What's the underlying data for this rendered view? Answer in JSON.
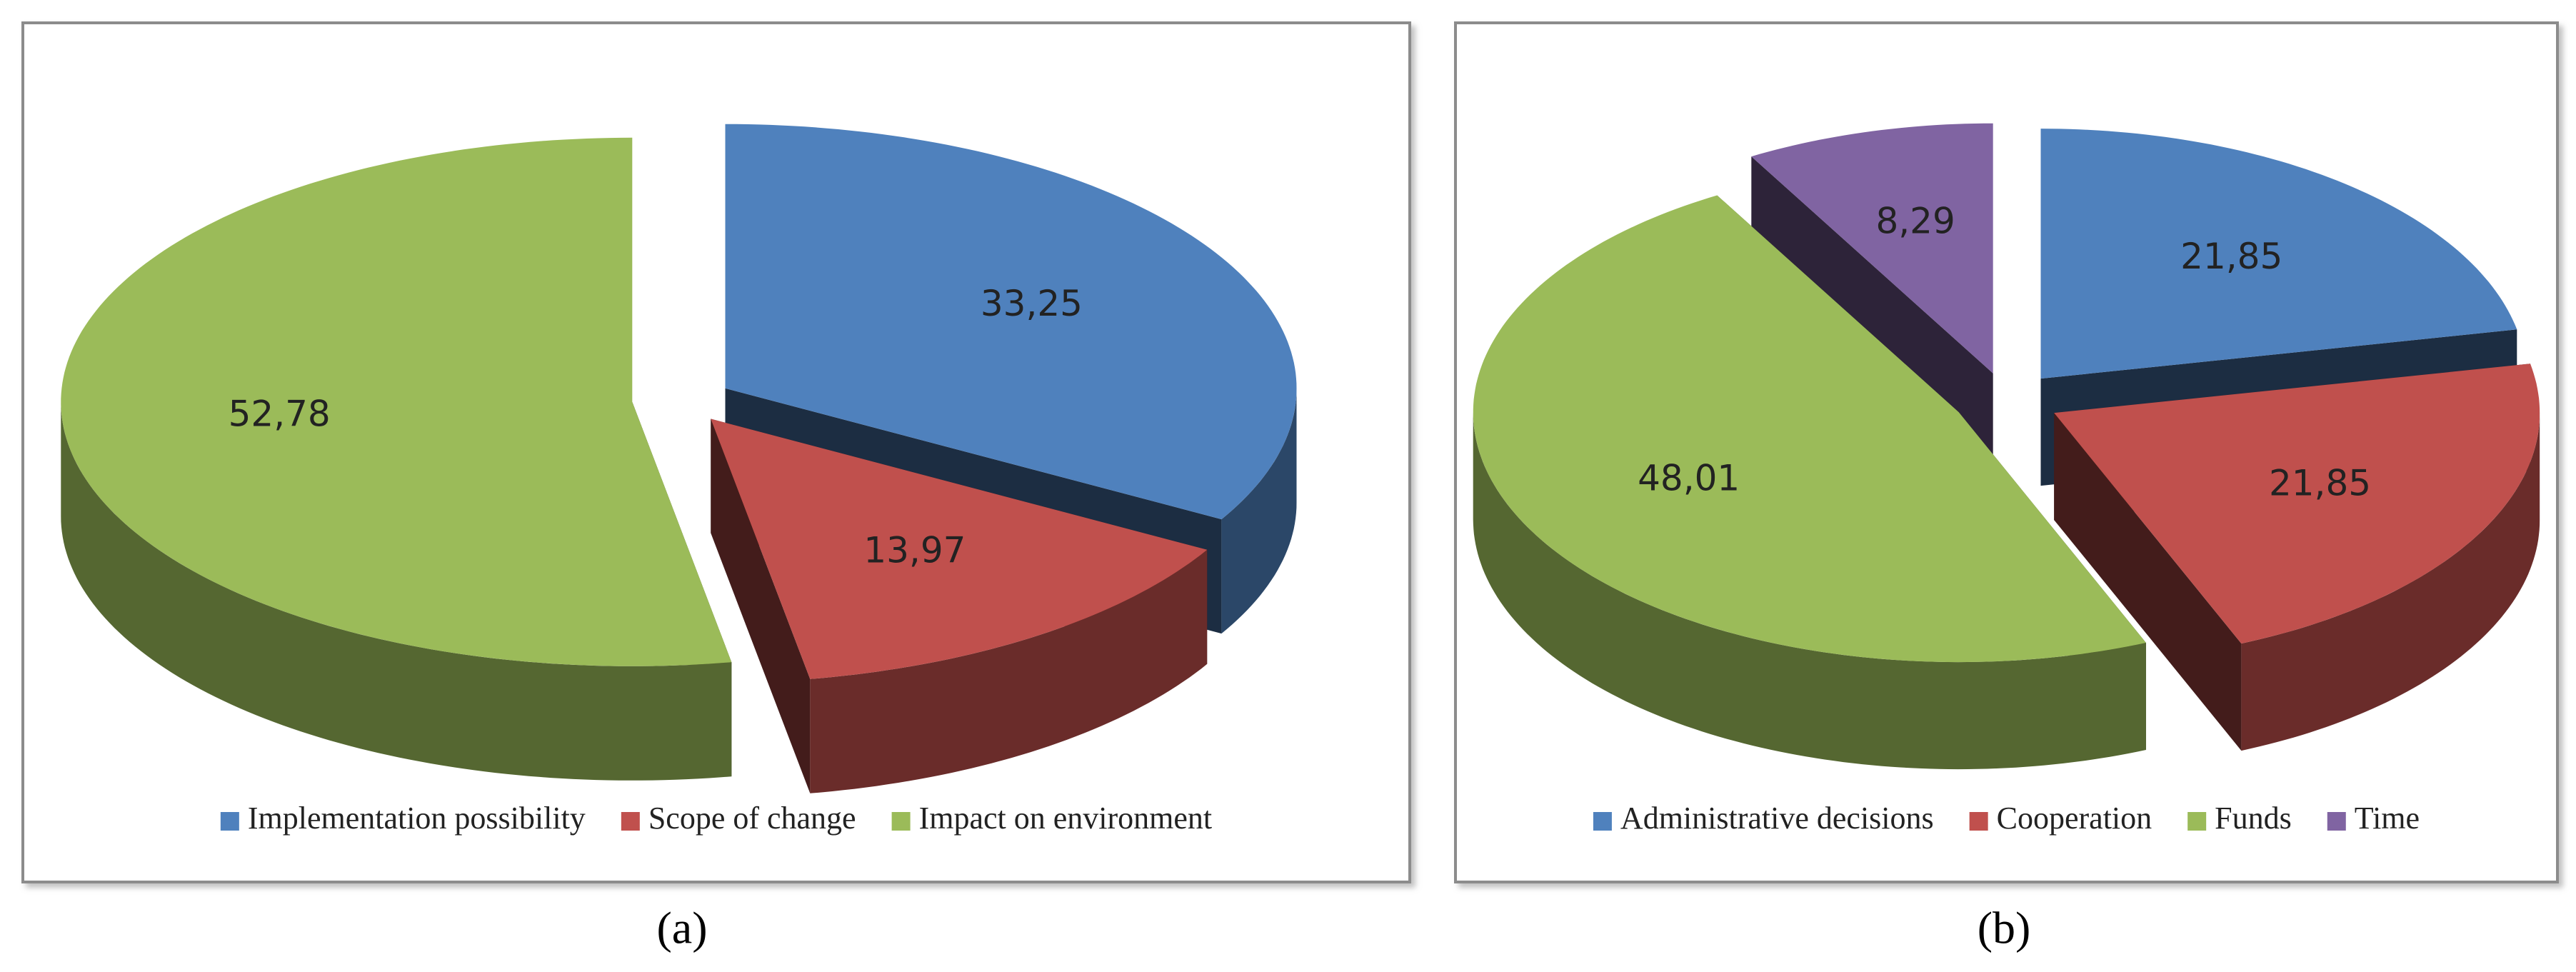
{
  "chart_data": [
    {
      "type": "pie",
      "label": "(a)",
      "categories": [
        "Implementation possibility",
        "Scope of change",
        "Impact on environment"
      ],
      "values": [
        33.25,
        13.97,
        52.78
      ],
      "value_labels": [
        "33,25",
        "13,97",
        "52,78"
      ],
      "colors": [
        "#4f81bd",
        "#c0504d",
        "#9bbb59"
      ],
      "legend": "bottom"
    },
    {
      "type": "pie",
      "label": "(b)",
      "categories": [
        "Administrative decisions",
        "Cooperation",
        "Funds",
        "Time"
      ],
      "values": [
        21.85,
        21.85,
        48.01,
        8.29
      ],
      "value_labels": [
        "21,85",
        "21,85",
        "48,01",
        "8,29"
      ],
      "colors": [
        "#4f81bd",
        "#c0504d",
        "#9bbb59",
        "#8064a2"
      ],
      "legend": "bottom"
    }
  ]
}
